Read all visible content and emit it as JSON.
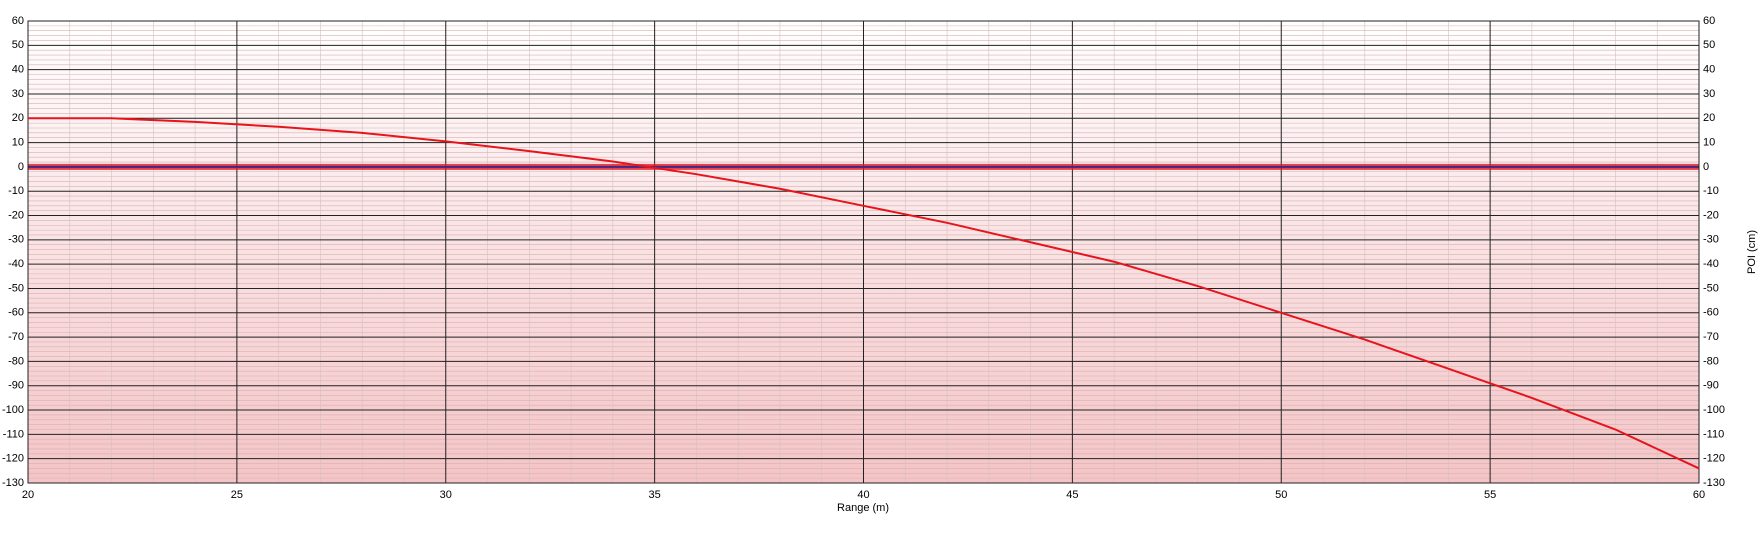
{
  "chart_data": {
    "type": "line",
    "x_label": "Range (m)",
    "y2_label": "POI (cm)",
    "x": [
      20,
      22,
      24,
      26,
      28,
      30,
      32,
      34,
      36,
      38,
      40,
      42,
      44,
      46,
      48,
      50,
      52,
      54,
      56,
      58,
      60
    ],
    "series": [
      {
        "color": "#e8141c",
        "values": [
          20,
          20,
          18.5,
          16.5,
          14,
          10.5,
          6.5,
          2.2,
          -3,
          -9,
          -16,
          -23,
          -31,
          -39,
          -49,
          -60,
          -71,
          -83,
          -95,
          -108,
          -124
        ]
      }
    ],
    "xlim": [
      20,
      60
    ],
    "xticks": [
      20,
      25,
      30,
      35,
      40,
      45,
      50,
      55,
      60
    ],
    "ylim": [
      -130,
      60
    ],
    "yticks": [
      -130,
      -120,
      -110,
      -100,
      -90,
      -80,
      -70,
      -60,
      -50,
      -40,
      -30,
      -20,
      -10,
      0,
      10,
      20,
      30,
      40,
      50,
      60
    ],
    "grid": true,
    "zero_line_color": "#3a2a8a"
  }
}
